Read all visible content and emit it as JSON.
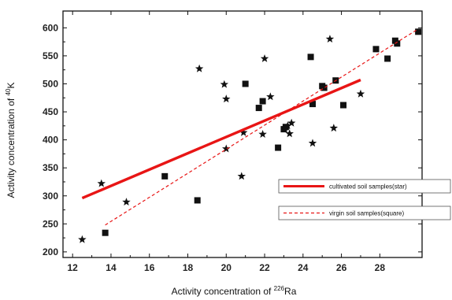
{
  "chart_data": {
    "type": "scatter",
    "xlabel": {
      "prefix": "Activity concentration of ",
      "sup": "226",
      "suffix": "Ra"
    },
    "ylabel": {
      "prefix": "Activity concentration of ",
      "sup": "40",
      "suffix": "K"
    },
    "xlim": [
      11.5,
      30.2
    ],
    "ylim": [
      190,
      630
    ],
    "x_ticks": [
      12,
      14,
      16,
      18,
      20,
      22,
      24,
      26,
      28
    ],
    "y_ticks": [
      200,
      250,
      300,
      350,
      400,
      450,
      500,
      550,
      600
    ],
    "grid": false,
    "series": [
      {
        "name": "cultivated soil samples(star)",
        "marker": "star",
        "color": "#111111",
        "points": [
          {
            "x": 12.5,
            "y": 222
          },
          {
            "x": 13.5,
            "y": 322
          },
          {
            "x": 14.8,
            "y": 289
          },
          {
            "x": 18.6,
            "y": 527
          },
          {
            "x": 19.9,
            "y": 499
          },
          {
            "x": 20.0,
            "y": 473
          },
          {
            "x": 20.0,
            "y": 384
          },
          {
            "x": 20.8,
            "y": 335
          },
          {
            "x": 20.9,
            "y": 413
          },
          {
            "x": 21.9,
            "y": 410
          },
          {
            "x": 22.0,
            "y": 545
          },
          {
            "x": 22.3,
            "y": 477
          },
          {
            "x": 23.2,
            "y": 425
          },
          {
            "x": 23.3,
            "y": 411
          },
          {
            "x": 23.4,
            "y": 430
          },
          {
            "x": 24.5,
            "y": 394
          },
          {
            "x": 25.4,
            "y": 580
          },
          {
            "x": 25.6,
            "y": 421
          },
          {
            "x": 27.0,
            "y": 482
          }
        ],
        "fit": {
          "x": [
            12.5,
            27.0
          ],
          "y": [
            296,
            507
          ],
          "style": "solid",
          "color": "#e81515"
        }
      },
      {
        "name": "virgin soil samples(square)",
        "marker": "square",
        "color": "#111111",
        "points": [
          {
            "x": 13.7,
            "y": 234
          },
          {
            "x": 16.8,
            "y": 335
          },
          {
            "x": 18.5,
            "y": 292
          },
          {
            "x": 21.0,
            "y": 500
          },
          {
            "x": 21.7,
            "y": 457
          },
          {
            "x": 21.9,
            "y": 469
          },
          {
            "x": 22.7,
            "y": 386
          },
          {
            "x": 23.0,
            "y": 419
          },
          {
            "x": 23.1,
            "y": 423
          },
          {
            "x": 24.4,
            "y": 548
          },
          {
            "x": 24.5,
            "y": 464
          },
          {
            "x": 25.0,
            "y": 496
          },
          {
            "x": 25.1,
            "y": 493
          },
          {
            "x": 25.7,
            "y": 506
          },
          {
            "x": 26.1,
            "y": 462
          },
          {
            "x": 27.8,
            "y": 562
          },
          {
            "x": 28.4,
            "y": 545
          },
          {
            "x": 28.8,
            "y": 577
          },
          {
            "x": 28.9,
            "y": 572
          },
          {
            "x": 30.0,
            "y": 593
          }
        ],
        "fit": {
          "x": [
            13.7,
            30.0
          ],
          "y": [
            248,
            598
          ],
          "style": "dashed",
          "color": "#e81515"
        }
      }
    ],
    "legend": {
      "placement": "center-right",
      "entries": [
        {
          "series": 0,
          "label": "cultivated soil samples(star)"
        },
        {
          "series": 1,
          "label": "virgin soil samples(square)"
        }
      ]
    }
  }
}
